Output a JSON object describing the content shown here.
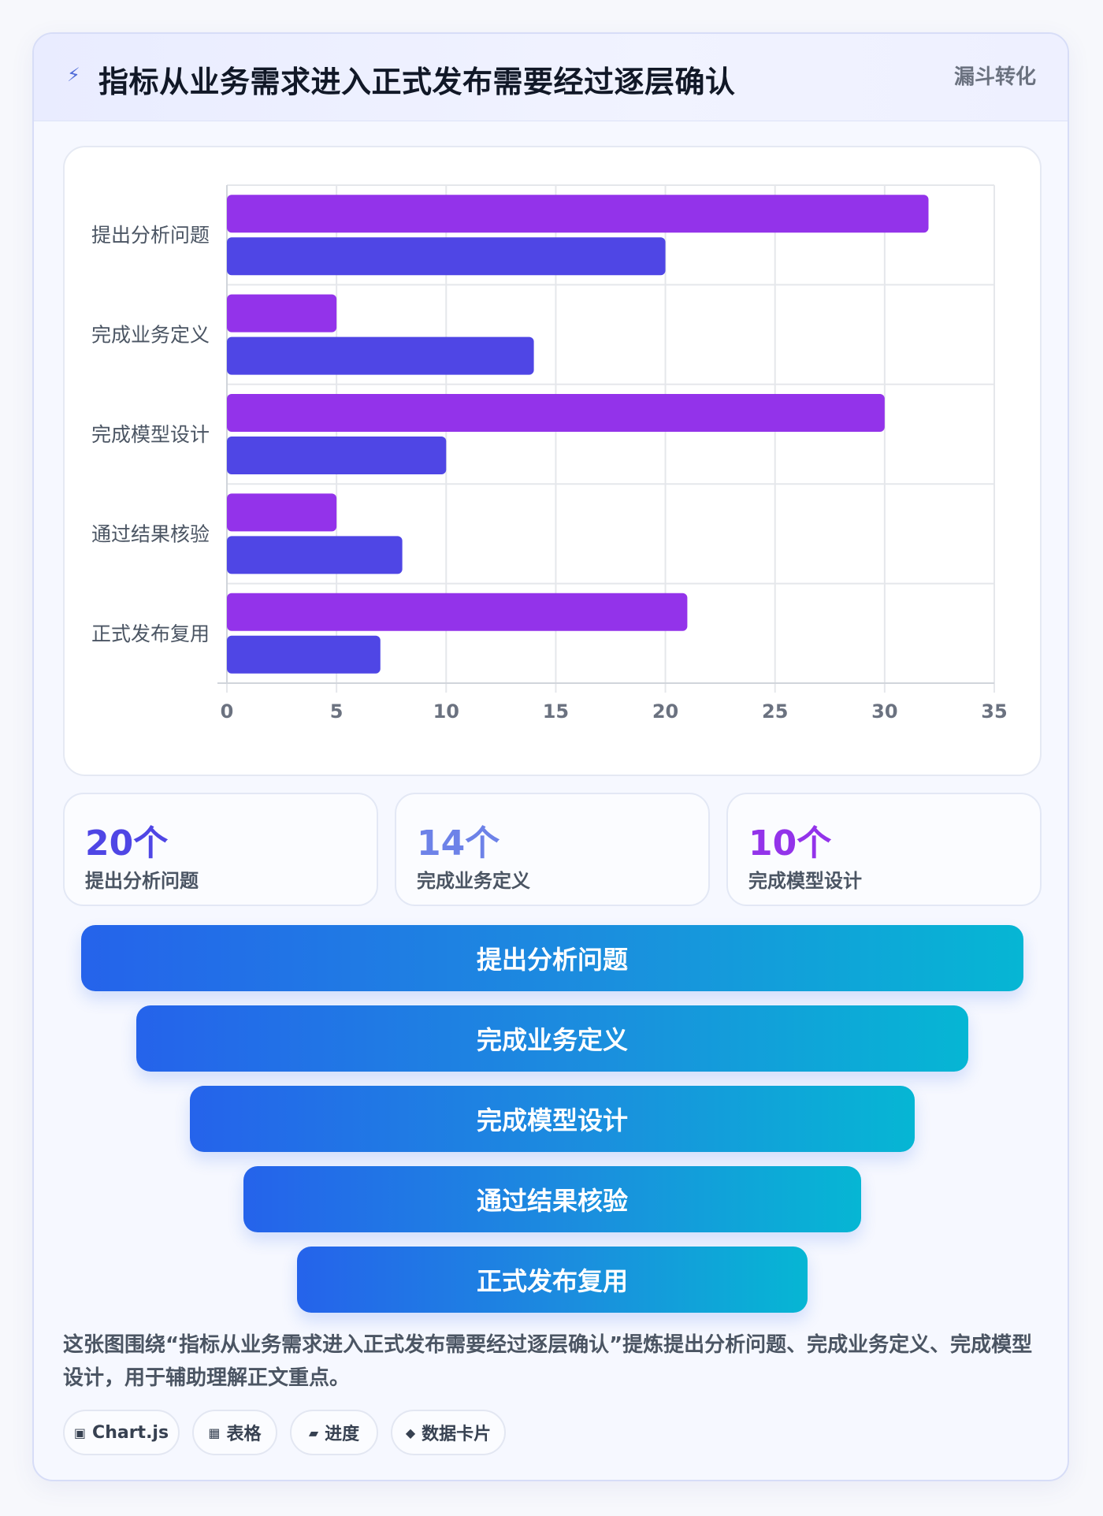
{
  "header": {
    "icon": "lightning-icon",
    "title": "指标从业务需求进入正式发布需要经过逐层确认",
    "tag": "漏斗转化"
  },
  "chart_data": {
    "type": "bar",
    "orientation": "horizontal",
    "categories": [
      "提出分析问题",
      "完成业务定义",
      "完成模型设计",
      "通过结果核验",
      "正式发布复用"
    ],
    "series": [
      {
        "values": [
          32,
          5,
          30,
          5,
          21
        ],
        "color": "#9333ea"
      },
      {
        "values": [
          20,
          14,
          10,
          8,
          7
        ],
        "color": "#4f46e5"
      }
    ],
    "xlim": [
      0,
      35
    ],
    "xticks": [
      0,
      5,
      10,
      15,
      20,
      25,
      30,
      35
    ],
    "grid": true,
    "legend": "none"
  },
  "stats": [
    {
      "value": "20个",
      "label": "提出分析问题",
      "color": "#4f46e5"
    },
    {
      "value": "14个",
      "label": "完成业务定义",
      "color": "#6d82e8"
    },
    {
      "value": "10个",
      "label": "完成模型设计",
      "color": "#9333ea"
    }
  ],
  "funnel": [
    {
      "label": "提出分析问题"
    },
    {
      "label": "完成业务定义"
    },
    {
      "label": "完成模型设计"
    },
    {
      "label": "通过结果核验"
    },
    {
      "label": "正式发布复用"
    }
  ],
  "description": "这张图围绕“指标从业务需求进入正式发布需要经过逐层确认”提炼提出分析问题、完成业务定义、完成模型设计，用于辅助理解正文重点。",
  "chips": [
    {
      "icon": "▣",
      "label": "Chart.js"
    },
    {
      "icon": "▦",
      "label": "表格"
    },
    {
      "icon": "▰",
      "label": "进度"
    },
    {
      "icon": "◆",
      "label": "数据卡片"
    }
  ]
}
